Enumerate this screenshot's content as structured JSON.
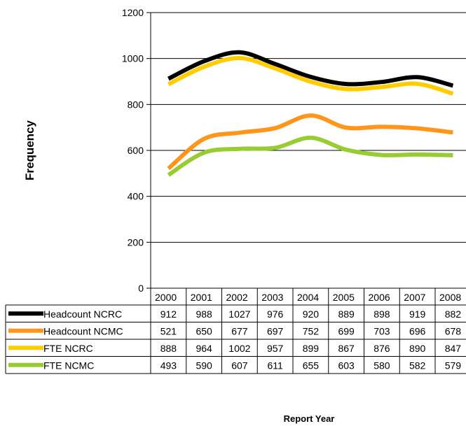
{
  "chart_data": {
    "type": "line",
    "title": "",
    "xlabel": "Report Year",
    "ylabel": "Frequency",
    "ylim": [
      0,
      1200
    ],
    "yticks": [
      0,
      200,
      400,
      600,
      800,
      1000,
      1200
    ],
    "grid": true,
    "legend": "data-table-below",
    "categories": [
      "2000",
      "2001",
      "2002",
      "2003",
      "2004",
      "2005",
      "2006",
      "2007",
      "2008"
    ],
    "series": [
      {
        "name": "Headcount NCRC",
        "color": "#000000",
        "values": [
          912,
          988,
          1027,
          976,
          920,
          889,
          898,
          919,
          882
        ]
      },
      {
        "name": "Headcount NCMC",
        "color": "#FF9619",
        "values": [
          521,
          650,
          677,
          697,
          752,
          699,
          703,
          696,
          678
        ]
      },
      {
        "name": "FTE NCRC",
        "color": "#FFCC00",
        "values": [
          888,
          964,
          1002,
          957,
          899,
          867,
          876,
          890,
          847
        ]
      },
      {
        "name": "FTE NCMC",
        "color": "#99CC33",
        "values": [
          493,
          590,
          607,
          611,
          655,
          603,
          580,
          582,
          579
        ]
      }
    ]
  }
}
